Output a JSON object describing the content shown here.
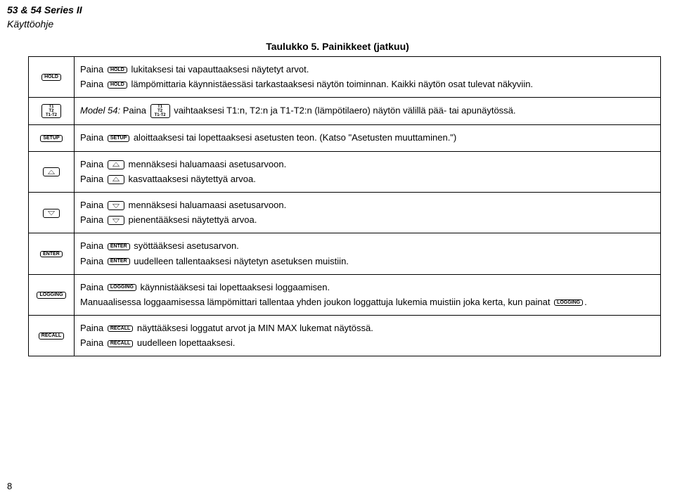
{
  "header": {
    "line1": "53 & 54 Series II",
    "line2": "Käyttöohje"
  },
  "table_title": "Taulukko 5. Painikkeet (jatkuu)",
  "page_number": "8",
  "keys": {
    "hold": "HOLD",
    "t1t2": "T1\nT2\nT1-T2",
    "setup": "SETUP",
    "enter": "ENTER",
    "logging": "LOGGING",
    "recall": "RECALL"
  },
  "rows": {
    "hold": {
      "p1a": "Paina ",
      "p1b": " lukitaksesi tai vapauttaaksesi näytetyt arvot.",
      "p2a": "Paina ",
      "p2b": " lämpömittaria käynnistäessäsi tarkastaaksesi näytön toiminnan. Kaikki näytön osat tulevat näkyviin."
    },
    "t1t2": {
      "p1a": "Model 54: ",
      "p1b": "Paina ",
      "p1c": " vaihtaaksesi T1:n, T2:n ja T1-T2:n (lämpötilaero) näytön välillä pää- tai apunäytössä."
    },
    "setup": {
      "p1a": "Paina ",
      "p1b": " aloittaaksesi tai lopettaaksesi asetusten teon. (Katso \"Asetusten muuttaminen.\")"
    },
    "up": {
      "p1a": "Paina ",
      "p1b": " mennäksesi haluamaasi asetusarvoon.",
      "p2a": "Paina ",
      "p2b": " kasvattaaksesi näytettyä arvoa."
    },
    "down": {
      "p1a": "Paina ",
      "p1b": " mennäksesi haluamaasi asetusarvoon.",
      "p2a": "Paina ",
      "p2b": " pienentääksesi näytettyä arvoa."
    },
    "enter": {
      "p1a": "Paina ",
      "p1b": " syöttääksesi asetusarvon.",
      "p2a": "Paina ",
      "p2b": " uudelleen tallentaaksesi näytetyn asetuksen muistiin."
    },
    "logging": {
      "p1a": "Paina ",
      "p1b": " käynnistääksesi tai lopettaaksesi loggaamisen.",
      "p2a": "Manuaalisessa loggaamisessa lämpömittari tallentaa yhden joukon loggattuja lukemia muistiin joka kerta, kun painat ",
      "p2b": "."
    },
    "recall": {
      "p1a": "Paina ",
      "p1b": " näyttääksesi loggatut arvot ja MIN MAX lukemat näytössä.",
      "p2a": "Paina ",
      "p2b": " uudelleen lopettaaksesi."
    }
  }
}
